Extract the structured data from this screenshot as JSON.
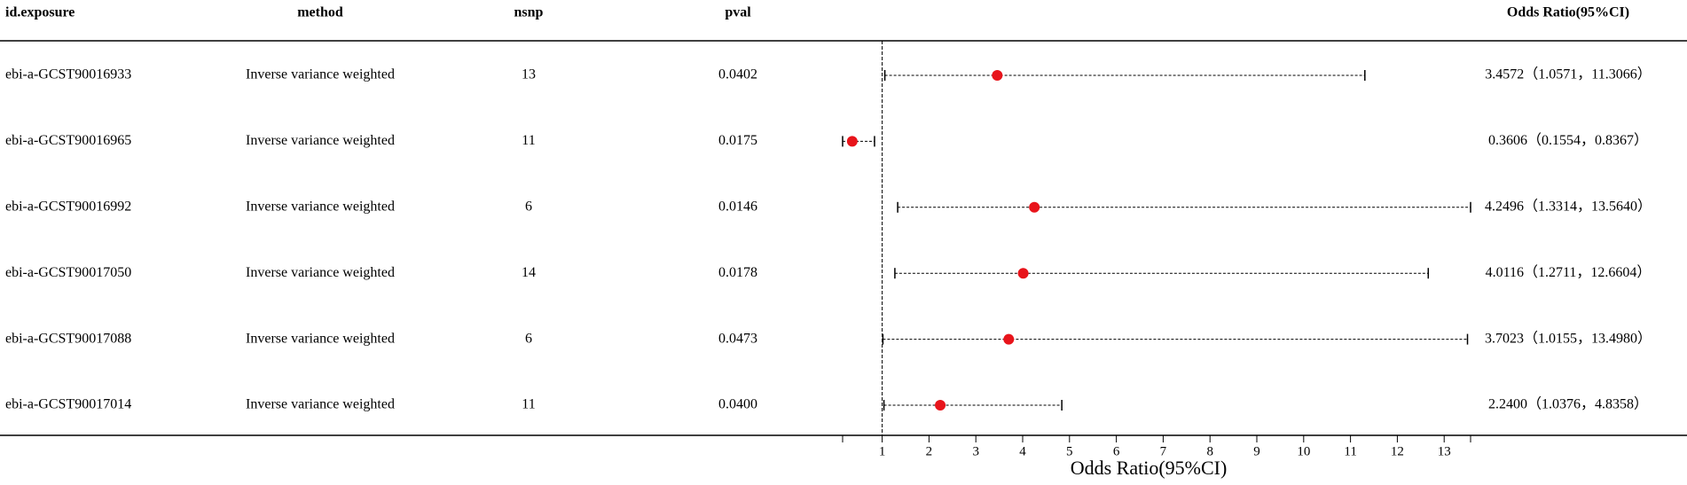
{
  "table": {
    "header": [
      "id.exposure",
      "method",
      "nsnp",
      "pval",
      "Odds Ratio(95%CI)"
    ],
    "rows": [
      [
        "ebi-a-GCST90016933",
        "Inverse variance weighted",
        "13",
        "0.0402"
      ],
      [
        "ebi-a-GCST90016965",
        "Inverse variance weighted",
        "11",
        "0.0175"
      ],
      [
        "ebi-a-GCST90016992",
        "Inverse variance weighted",
        "6",
        "0.0146"
      ],
      [
        "ebi-a-GCST90017050",
        "Inverse variance weighted",
        "14",
        "0.0178"
      ],
      [
        "ebi-a-GCST90017088",
        "Inverse variance weighted",
        "6",
        "0.0473"
      ],
      [
        "ebi-a-GCST90017014",
        "Inverse variance weighted",
        "11",
        "0.0400"
      ]
    ]
  },
  "chart_data": {
    "type": "forest",
    "xlabel": "Odds Ratio(95%CI)",
    "series": [
      {
        "color": "#e8141b",
        "values": [
          3.4572,
          0.3606,
          4.2496,
          4.0116,
          3.7023,
          2.24
        ],
        "lower": [
          1.0571,
          0.1554,
          1.3314,
          1.2711,
          1.0155,
          1.0376
        ],
        "upper": [
          11.3066,
          0.8367,
          13.564,
          12.6604,
          13.498,
          4.8358
        ],
        "value_labels": [
          "3.4572（1.0571，11.3066）",
          "0.3606（0.1554，0.8367）",
          "4.2496（1.3314，13.5640）",
          "4.0116（1.2711，12.6604）",
          "3.7023（1.0155，13.4980）",
          "2.2400（1.0376，4.8358）"
        ]
      }
    ],
    "xlim": [
      0.1554,
      13.564
    ],
    "xticks": [
      1,
      2,
      3,
      4,
      5,
      6,
      7,
      8,
      9,
      10,
      11,
      12,
      13
    ],
    "reference": 1
  }
}
